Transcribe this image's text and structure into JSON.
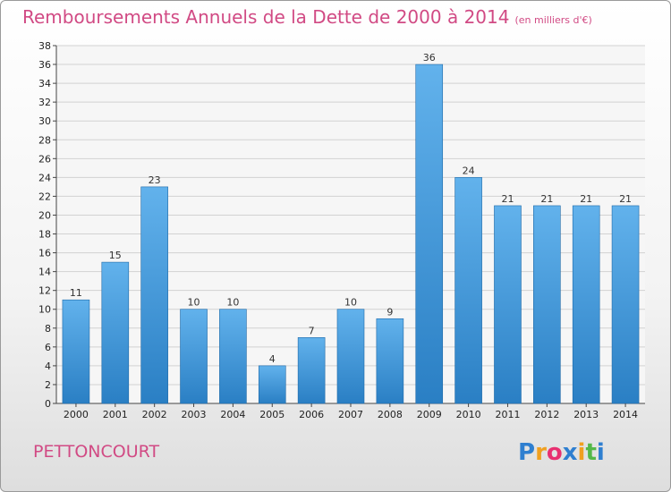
{
  "title": "Remboursements Annuels de la Dette de 2000 à 2014",
  "subtitle": "(en milliers d'€)",
  "commune": "PETTONCOURT",
  "logo": {
    "letters": [
      "P",
      "r",
      "o",
      "x",
      "i",
      "t",
      "i"
    ],
    "colors": [
      "#2f7fd0",
      "#f0a020",
      "#e83070",
      "#2f7fd0",
      "#f0a020",
      "#54b848",
      "#2f7fd0"
    ]
  },
  "colors": {
    "accent": "#d14a84",
    "bar_light": "#62b2ec",
    "bar_dark": "#2a7fc4"
  },
  "chart_data": {
    "type": "bar",
    "title": "Remboursements Annuels de la Dette de 2000 à 2014",
    "subtitle": "(en milliers d'€)",
    "categories": [
      "2000",
      "2001",
      "2002",
      "2003",
      "2004",
      "2005",
      "2006",
      "2007",
      "2008",
      "2009",
      "2010",
      "2011",
      "2012",
      "2013",
      "2014"
    ],
    "values": [
      11,
      15,
      23,
      10,
      10,
      4,
      7,
      10,
      9,
      36,
      24,
      21,
      21,
      21,
      21
    ],
    "ylim": [
      0,
      38
    ],
    "yticks": [
      0,
      2,
      4,
      6,
      8,
      10,
      12,
      14,
      16,
      18,
      20,
      22,
      24,
      26,
      28,
      30,
      32,
      34,
      36,
      38
    ],
    "grid": true,
    "xlabel": "",
    "ylabel": ""
  }
}
